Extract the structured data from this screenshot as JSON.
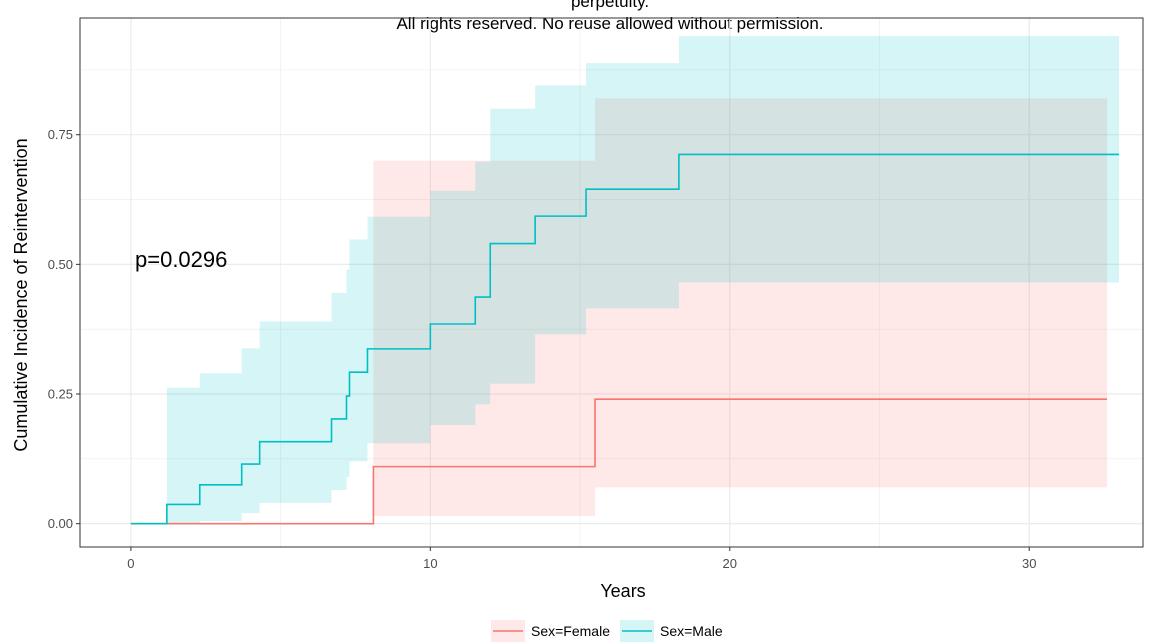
{
  "notice": {
    "line1": "perpetuity.",
    "line2": "All rights reserved. No reuse allowed without permission."
  },
  "annotation": {
    "pvalue": "p=0.0296"
  },
  "colors": {
    "female": "#F8766D",
    "male": "#00BFC4",
    "female_band": "#F8766D",
    "male_band": "#00BFC4",
    "grid": "#ebebeb",
    "panel_border": "#333333"
  },
  "chart_data": {
    "type": "line",
    "title": "",
    "xlabel": "Years",
    "ylabel": "Cumulative Incidence of Reintervention",
    "xlim": [
      -1.7,
      33.8
    ],
    "ylim": [
      -0.045,
      0.975
    ],
    "x_ticks": [
      0,
      10,
      20,
      30
    ],
    "x_tick_labels": [
      "0",
      "10",
      "20",
      "30"
    ],
    "y_ticks": [
      0,
      0.25,
      0.5,
      0.75
    ],
    "y_tick_labels": [
      "0.00",
      "0.25",
      "0.50",
      "0.75"
    ],
    "grid": true,
    "legend_position": "bottom",
    "step": true,
    "series": [
      {
        "name": "Sex=Female",
        "color": "#F8766D",
        "x": [
          0,
          8.1,
          15.5,
          32.6
        ],
        "y": [
          0,
          0.11,
          0.24,
          0.24
        ],
        "lower": [
          0,
          0.015,
          0.07,
          0.07
        ],
        "upper": [
          0,
          0.7,
          0.82,
          0.82
        ]
      },
      {
        "name": "Sex=Male",
        "color": "#00BFC4",
        "x": [
          0,
          1.2,
          2.3,
          3.7,
          4.3,
          6.7,
          7.2,
          7.3,
          7.9,
          10.0,
          11.5,
          12.0,
          13.5,
          15.2,
          18.3,
          33.0
        ],
        "y": [
          0,
          0.037,
          0.075,
          0.115,
          0.158,
          0.202,
          0.246,
          0.292,
          0.337,
          0.385,
          0.437,
          0.54,
          0.593,
          0.645,
          0.712,
          0.712
        ],
        "lower": [
          0,
          0.0,
          0.005,
          0.02,
          0.04,
          0.065,
          0.09,
          0.12,
          0.155,
          0.19,
          0.23,
          0.27,
          0.365,
          0.415,
          0.465,
          0.535
        ],
        "upper": [
          0,
          0.262,
          0.29,
          0.338,
          0.39,
          0.445,
          0.49,
          0.548,
          0.592,
          0.642,
          0.698,
          0.8,
          0.845,
          0.888,
          0.94,
          0.94
        ]
      }
    ]
  }
}
